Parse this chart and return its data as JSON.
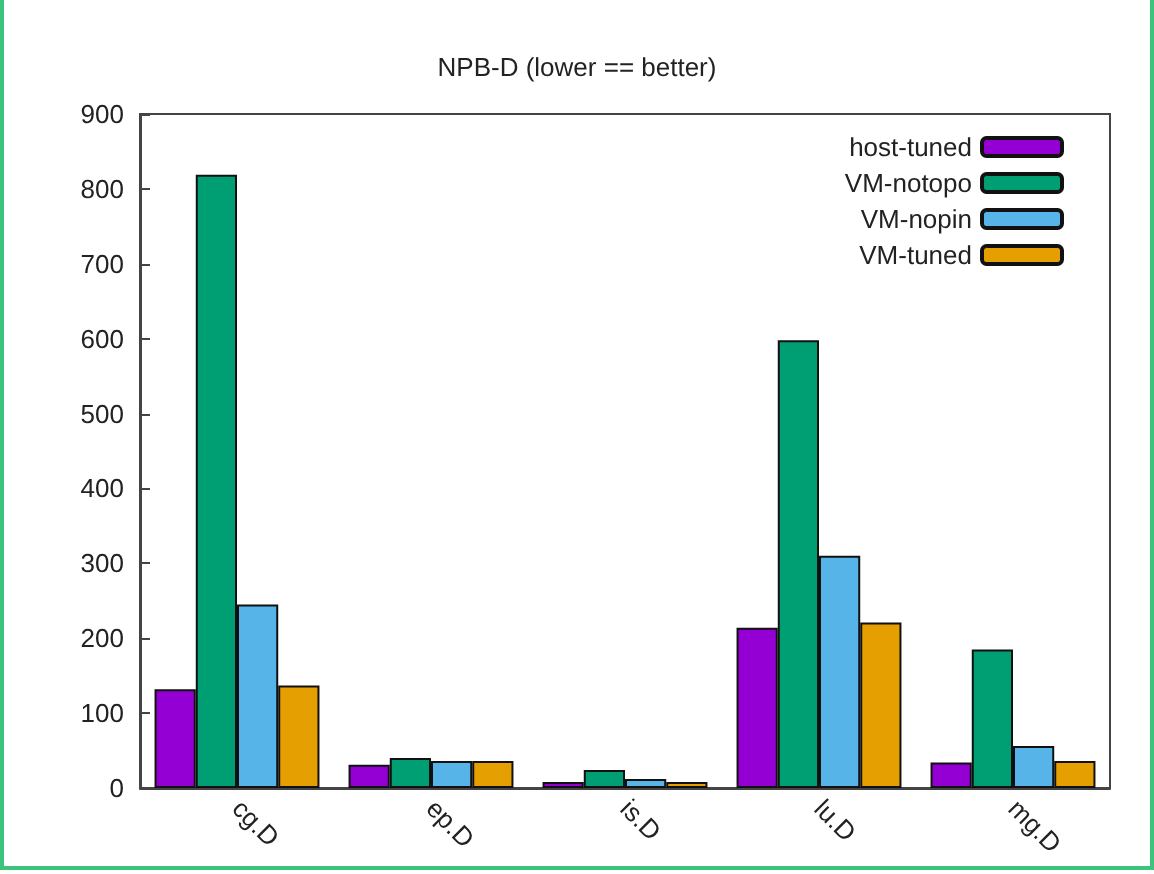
{
  "chart_data": {
    "type": "bar",
    "title": "NPB-D (lower == better)",
    "categories": [
      "cg.D",
      "ep.D",
      "is.D",
      "lu.D",
      "mg.D"
    ],
    "series": [
      {
        "name": "host-tuned",
        "color": "#9400d3",
        "values": [
          132,
          31,
          8,
          214,
          34
        ]
      },
      {
        "name": "VM-notopo",
        "color": "#009e73",
        "values": [
          819,
          40,
          24,
          598,
          185
        ]
      },
      {
        "name": "VM-nopin",
        "color": "#56b4e9",
        "values": [
          245,
          36,
          12,
          310,
          56
        ]
      },
      {
        "name": "VM-tuned",
        "color": "#e69f00",
        "values": [
          137,
          36,
          8,
          221,
          36
        ]
      }
    ],
    "ylim": [
      0,
      900
    ],
    "yticks": [
      0,
      100,
      200,
      300,
      400,
      500,
      600,
      700,
      800,
      900
    ],
    "grid": false,
    "legend": "top right"
  }
}
